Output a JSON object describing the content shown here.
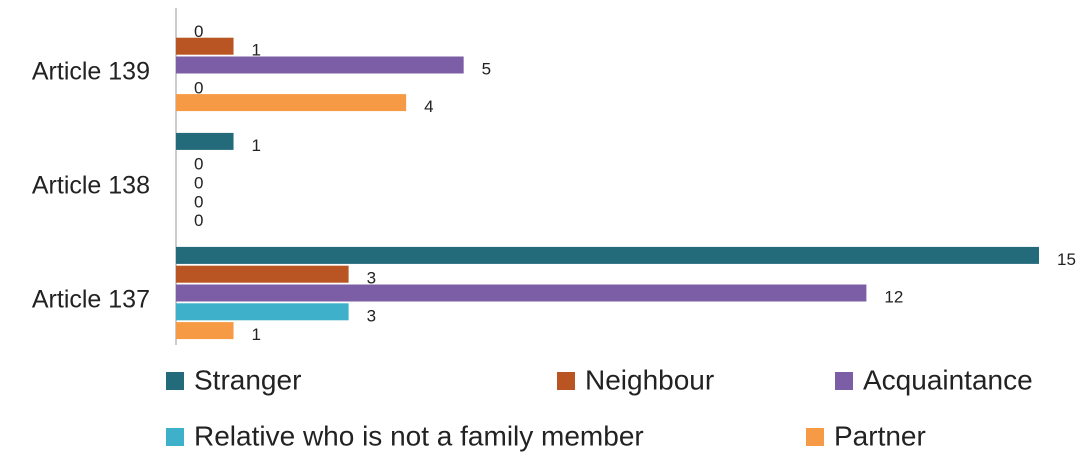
{
  "chart_data": {
    "type": "hbar",
    "categories": [
      "Article 139",
      "Article 138",
      "Article 137"
    ],
    "series": [
      {
        "name": "Stranger",
        "color": "#236a7a",
        "values": [
          0,
          1,
          15
        ]
      },
      {
        "name": "Neighbour",
        "color": "#b85523",
        "values": [
          1,
          0,
          3
        ]
      },
      {
        "name": "Acquaintance",
        "color": "#7c5ea6",
        "values": [
          5,
          0,
          12
        ]
      },
      {
        "name": "Relative who is not a family member",
        "color": "#3fb0c9",
        "values": [
          0,
          0,
          3
        ]
      },
      {
        "name": "Partner",
        "color": "#f79a45",
        "values": [
          4,
          0,
          1
        ]
      }
    ],
    "xlim": [
      0,
      15
    ],
    "legend": "bottom"
  }
}
